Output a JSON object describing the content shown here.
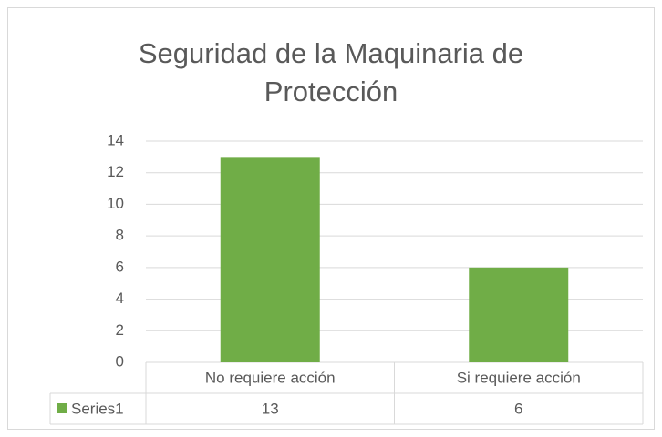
{
  "chart_data": {
    "type": "bar",
    "title": "Seguridad de la Maquinaria de Protección",
    "categories": [
      "No requiere acción",
      "Si requiere acción"
    ],
    "series": [
      {
        "name": "Series1",
        "color": "#70ad47",
        "values": [
          13,
          6
        ]
      }
    ],
    "ylim": [
      0,
      14
    ],
    "yticks": [
      0,
      2,
      4,
      6,
      8,
      10,
      12,
      14
    ],
    "grid": true,
    "data_table": true
  }
}
